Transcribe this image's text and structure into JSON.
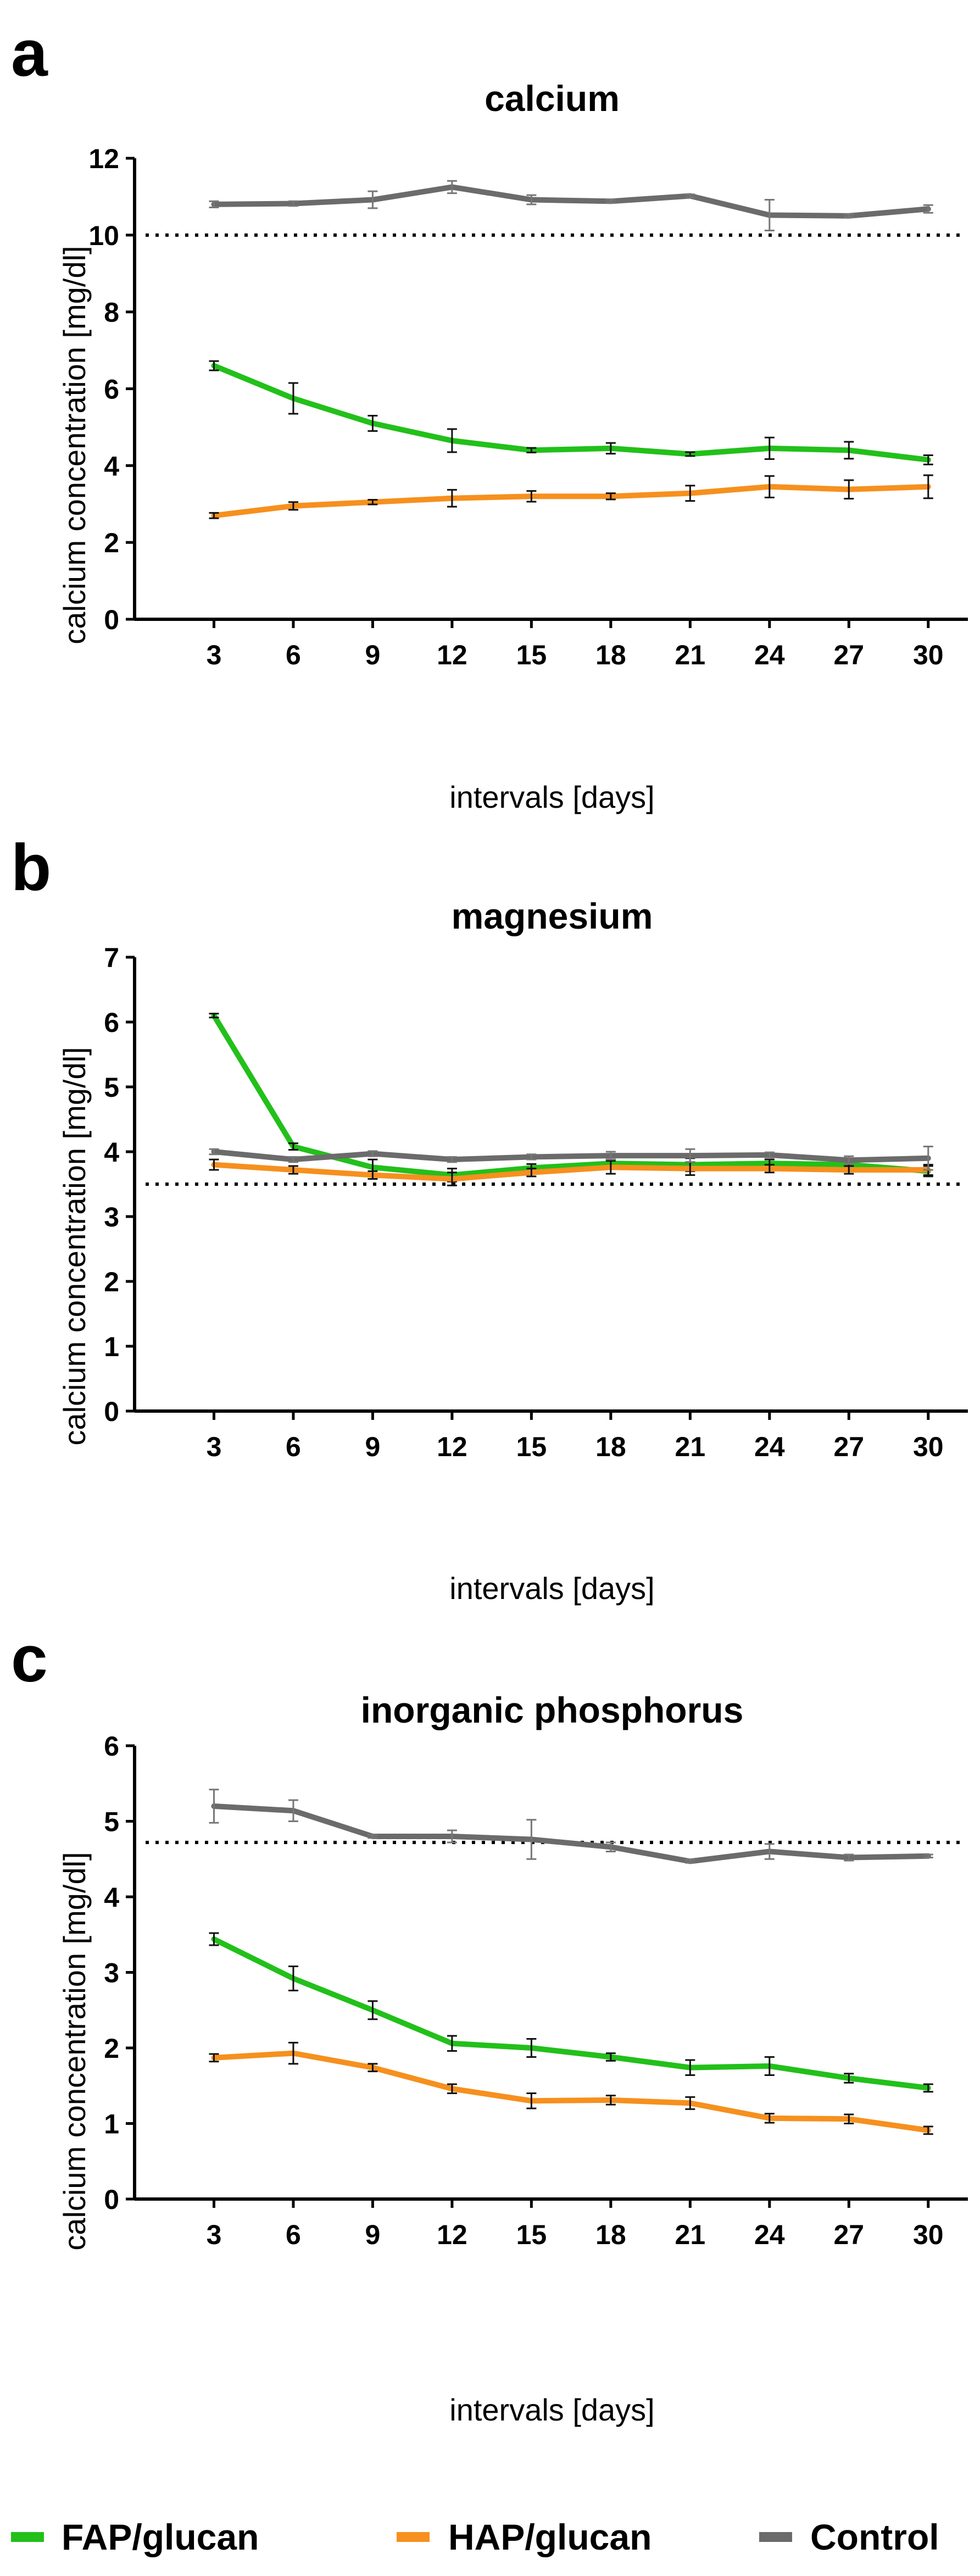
{
  "legend": [
    {
      "name": "FAP/glucan",
      "color": "#22c01a"
    },
    {
      "name": "HAP/glucan",
      "color": "#f6901e"
    },
    {
      "name": "Control",
      "color": "#6b6b6b"
    }
  ],
  "chart_data": [
    {
      "panel": "a",
      "type": "line",
      "title": "calcium",
      "xlabel": "intervals [days]",
      "ylabel": "calcium concentration [mg/dl]",
      "ylim": [
        0,
        12
      ],
      "yticks": [
        "0",
        "2",
        "4",
        "6",
        "8",
        "10",
        "12"
      ],
      "categories": [
        "3",
        "6",
        "9",
        "12",
        "15",
        "18",
        "21",
        "24",
        "27",
        "30"
      ],
      "reference_line": 10,
      "series": [
        {
          "name": "FAP/glucan",
          "values": [
            6.6,
            5.75,
            5.1,
            4.65,
            4.4,
            4.45,
            4.3,
            4.45,
            4.4,
            4.15
          ],
          "errors": [
            0.12,
            0.4,
            0.2,
            0.3,
            0.06,
            0.14,
            0.05,
            0.28,
            0.22,
            0.12
          ]
        },
        {
          "name": "HAP/glucan",
          "values": [
            2.7,
            2.95,
            3.05,
            3.15,
            3.2,
            3.2,
            3.28,
            3.45,
            3.38,
            3.45
          ],
          "errors": [
            0.07,
            0.1,
            0.06,
            0.22,
            0.14,
            0.08,
            0.2,
            0.28,
            0.24,
            0.3
          ]
        },
        {
          "name": "Control",
          "values": [
            10.8,
            10.82,
            10.92,
            11.25,
            10.92,
            10.88,
            11.02,
            10.52,
            10.5,
            10.68
          ],
          "errors": [
            0.08,
            0.06,
            0.22,
            0.16,
            0.12,
            0.04,
            0.04,
            0.4,
            0.04,
            0.1
          ]
        }
      ]
    },
    {
      "panel": "b",
      "type": "line",
      "title": "magnesium",
      "xlabel": "intervals [days]",
      "ylabel": "calcium concentration [mg/dl]",
      "ylim": [
        0,
        7
      ],
      "yticks": [
        "0",
        "1",
        "2",
        "3",
        "4",
        "5",
        "6",
        "7"
      ],
      "categories": [
        "3",
        "6",
        "9",
        "12",
        "15",
        "18",
        "21",
        "24",
        "27",
        "30"
      ],
      "reference_line": 3.5,
      "series": [
        {
          "name": "FAP/glucan",
          "values": [
            6.1,
            4.08,
            3.76,
            3.64,
            3.75,
            3.82,
            3.8,
            3.82,
            3.8,
            3.7
          ],
          "errors": [
            0.03,
            0.05,
            0.12,
            0.1,
            0.06,
            0.06,
            0.1,
            0.06,
            0.06,
            0.08
          ]
        },
        {
          "name": "HAP/glucan",
          "values": [
            3.8,
            3.72,
            3.64,
            3.58,
            3.68,
            3.76,
            3.74,
            3.74,
            3.72,
            3.72
          ],
          "errors": [
            0.08,
            0.06,
            0.06,
            0.1,
            0.06,
            0.1,
            0.1,
            0.06,
            0.06,
            0.08
          ]
        },
        {
          "name": "Control",
          "values": [
            4.0,
            3.88,
            3.97,
            3.88,
            3.92,
            3.94,
            3.94,
            3.95,
            3.87,
            3.9
          ],
          "errors": [
            0.04,
            0.04,
            0.04,
            0.04,
            0.04,
            0.06,
            0.1,
            0.04,
            0.06,
            0.18
          ]
        }
      ]
    },
    {
      "panel": "c",
      "type": "line",
      "title": "inorganic phosphorus",
      "xlabel": "intervals [days]",
      "ylabel": "calcium concentration [mg/dl]",
      "ylim": [
        0,
        6
      ],
      "yticks": [
        "0",
        "1",
        "2",
        "3",
        "4",
        "5",
        "6"
      ],
      "categories": [
        "3",
        "6",
        "9",
        "12",
        "15",
        "18",
        "21",
        "24",
        "27",
        "30"
      ],
      "reference_line": 4.72,
      "series": [
        {
          "name": "FAP/glucan",
          "values": [
            3.44,
            2.92,
            2.5,
            2.06,
            2.0,
            1.88,
            1.74,
            1.76,
            1.6,
            1.47
          ],
          "errors": [
            0.08,
            0.16,
            0.12,
            0.1,
            0.12,
            0.05,
            0.1,
            0.12,
            0.06,
            0.05
          ]
        },
        {
          "name": "HAP/glucan",
          "values": [
            1.87,
            1.93,
            1.74,
            1.46,
            1.3,
            1.31,
            1.27,
            1.07,
            1.06,
            0.91
          ],
          "errors": [
            0.05,
            0.14,
            0.05,
            0.06,
            0.1,
            0.06,
            0.08,
            0.06,
            0.06,
            0.05
          ]
        },
        {
          "name": "Control",
          "values": [
            5.2,
            5.14,
            4.8,
            4.8,
            4.76,
            4.66,
            4.47,
            4.6,
            4.52,
            4.54
          ],
          "errors": [
            0.22,
            0.14,
            0.02,
            0.08,
            0.26,
            0.06,
            0.02,
            0.1,
            0.04,
            0.02
          ]
        }
      ]
    }
  ]
}
